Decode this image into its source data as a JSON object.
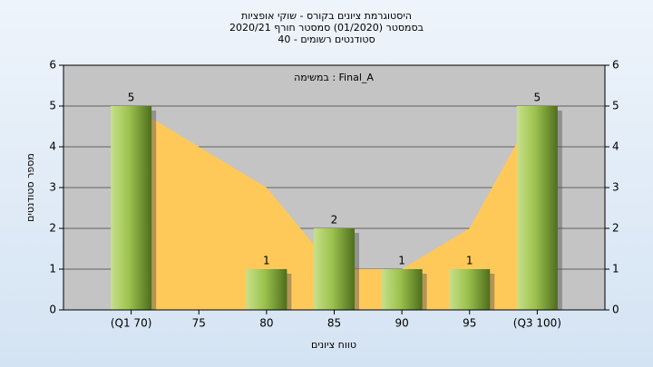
{
  "chart_data": {
    "type": "bar",
    "title": "היסטוגרמת ציונים בקורס - שוקי אופציות",
    "subtitle": "בסמסטר (01/2020) סמסטר חורף 2020/21",
    "subtitle2": "סטודנטים רשומים - 40",
    "annotation": "Final_A : במשימה",
    "x_label": "טווח ציונים",
    "y_label": "מספר סטודנטים",
    "categories": [
      "(Q1 70)",
      "75",
      "80",
      "85",
      "90",
      "95",
      "(Q3 100)"
    ],
    "series": [
      {
        "type": "area",
        "color": "#ffc95a",
        "values": [
          5,
          4,
          3,
          1,
          1,
          2,
          5
        ]
      },
      {
        "type": "bar",
        "color": "#8ab83c",
        "values": [
          5,
          null,
          1,
          2,
          1,
          1,
          5
        ]
      }
    ],
    "ylim": [
      0,
      6
    ],
    "yticks": [
      0,
      1,
      2,
      3,
      4,
      5,
      6
    ],
    "grid": true
  }
}
